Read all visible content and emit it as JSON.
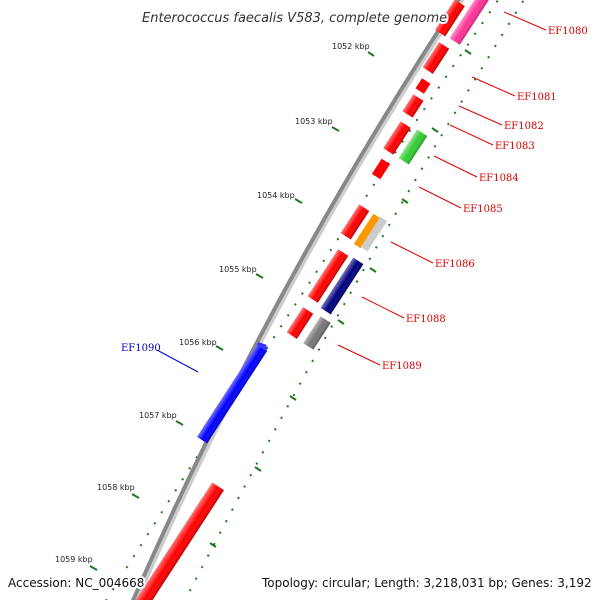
{
  "title": "Enterococcus faecalis V583, complete genome",
  "footer": {
    "accession": "Accession: NC_004668",
    "topology": "Topology: circular; Length: 3,218,031 bp; Genes: 3,192"
  },
  "ticks": [
    {
      "label": "1052 kbp"
    },
    {
      "label": "1053 kbp"
    },
    {
      "label": "1054 kbp"
    },
    {
      "label": "1055 kbp"
    },
    {
      "label": "1056 kbp"
    },
    {
      "label": "1057 kbp"
    },
    {
      "label": "1058 kbp"
    },
    {
      "label": "1059 kbp"
    }
  ],
  "gene_labels": [
    {
      "name": "EF1080",
      "color": "#dd0000"
    },
    {
      "name": "EF1081",
      "color": "#dd0000"
    },
    {
      "name": "EF1082",
      "color": "#dd0000"
    },
    {
      "name": "EF1083",
      "color": "#dd0000"
    },
    {
      "name": "EF1084",
      "color": "#dd0000"
    },
    {
      "name": "EF1085",
      "color": "#dd0000"
    },
    {
      "name": "EF1086",
      "color": "#dd0000"
    },
    {
      "name": "EF1088",
      "color": "#dd0000"
    },
    {
      "name": "EF1089",
      "color": "#dd0000"
    },
    {
      "name": "EF1090",
      "color": "#0000cc"
    }
  ],
  "colors": {
    "backbone": "#888888",
    "tick": "#227722",
    "red_gene": "#ff0000",
    "green_gene": "#33cc33",
    "blue_gene": "#0000ff",
    "navy_gene": "#000080",
    "orange_gene": "#ff9900",
    "grey_gene": "#777777",
    "pink_gene": "#ff3399"
  }
}
